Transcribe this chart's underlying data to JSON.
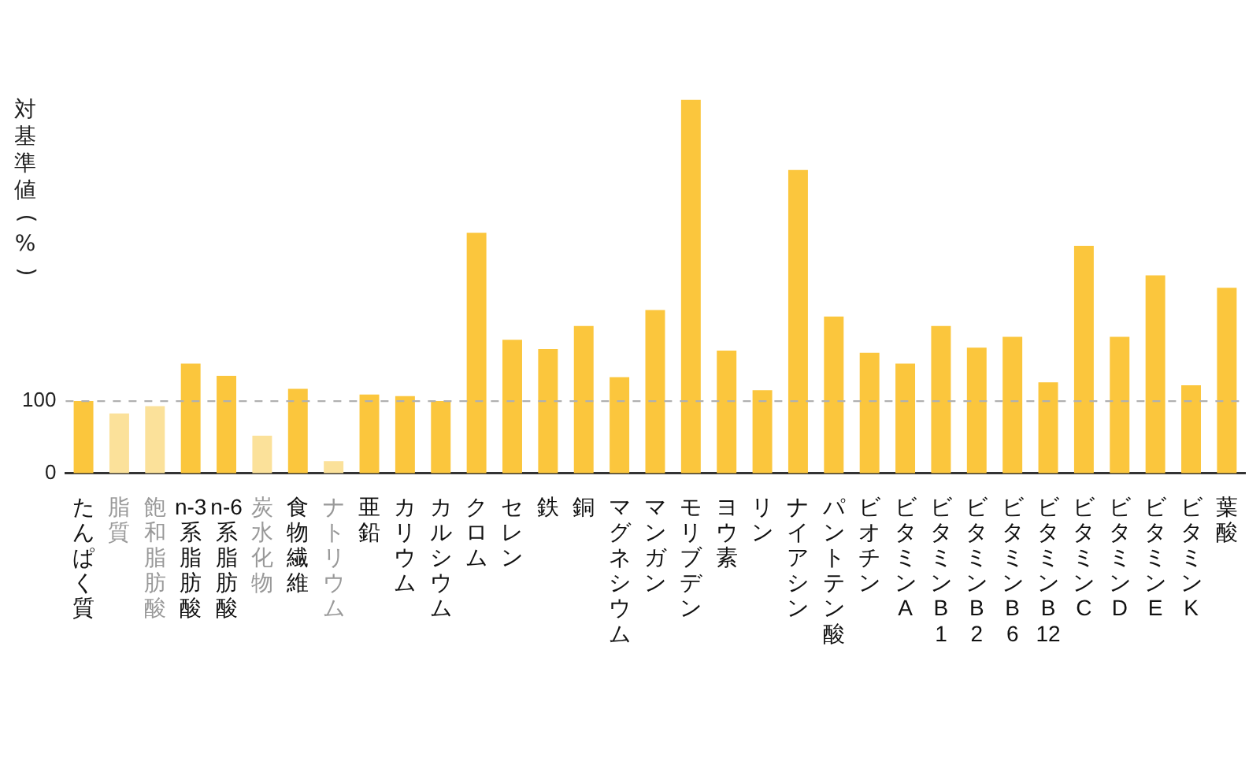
{
  "chart_data": {
    "type": "bar",
    "ylabel": "対基準値(%)",
    "categories": [
      "たんぱく質",
      "脂質",
      "飽和脂肪酸",
      "n-3系脂肪酸",
      "n-6系脂肪酸",
      "炭水化物",
      "食物繊維",
      "ナトリウム",
      "亜鉛",
      "カリウム",
      "カルシウム",
      "クロム",
      "セレン",
      "鉄",
      "銅",
      "マグネシウム",
      "マンガン",
      "モリブデン",
      "ヨウ素",
      "リン",
      "ナイアシン",
      "パントテン酸",
      "ビオチン",
      "ビタミンA",
      "ビタミンB1",
      "ビタミンB2",
      "ビタミンB6",
      "ビタミンB12",
      "ビタミンC",
      "ビタミンD",
      "ビタミンE",
      "ビタミンK",
      "葉酸"
    ],
    "values": [
      100,
      83,
      93,
      152,
      135,
      52,
      117,
      17,
      109,
      107,
      100,
      333,
      185,
      172,
      204,
      133,
      226,
      517,
      170,
      115,
      420,
      217,
      167,
      152,
      204,
      174,
      189,
      126,
      315,
      189,
      274,
      122,
      257
    ],
    "color": "#fbc63d",
    "colors": [
      "#fbc63d",
      "#fbe19a",
      "#fbe19a",
      "#fbc63d",
      "#fbc63d",
      "#fbe19a",
      "#fbc63d",
      "#fbe19a",
      "#fbc63d",
      "#fbc63d",
      "#fbc63d",
      "#fbc63d",
      "#fbc63d",
      "#fbc63d",
      "#fbc63d",
      "#fbc63d",
      "#fbc63d",
      "#fbc63d",
      "#fbc63d",
      "#fbc63d",
      "#fbc63d",
      "#fbc63d",
      "#fbc63d",
      "#fbc63d",
      "#fbc63d",
      "#fbc63d",
      "#fbc63d",
      "#fbc63d",
      "#fbc63d",
      "#fbc63d",
      "#fbc63d",
      "#fbc63d",
      "#fbc63d"
    ],
    "ylim": [
      0,
      520
    ],
    "yticks": [
      0,
      100
    ],
    "grid": false,
    "legend": false,
    "ref_lines": [
      {
        "axis": "y",
        "value": 100,
        "color": "#b0b0b0",
        "line_style": "dashed"
      }
    ]
  }
}
